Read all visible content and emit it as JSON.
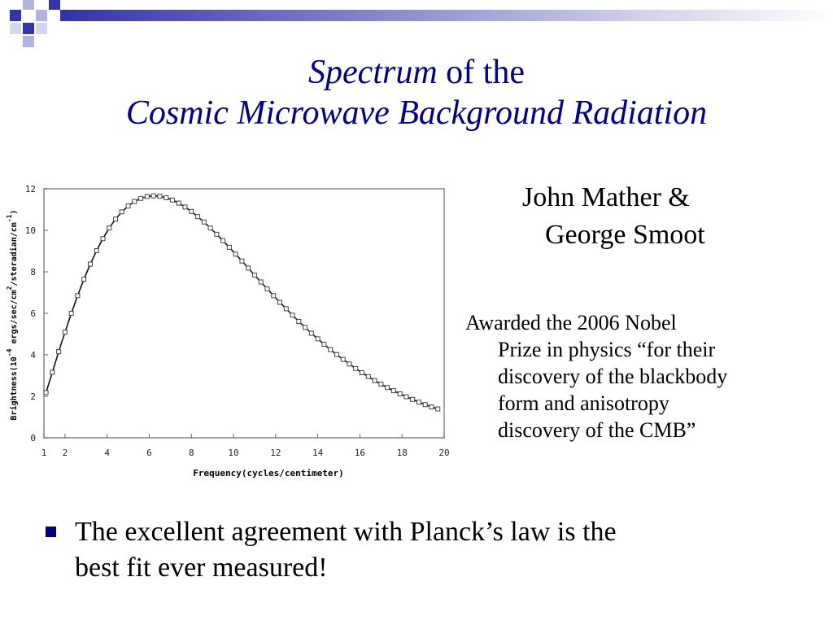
{
  "theme": {
    "navy": "#3333aa",
    "title_color": "#000099",
    "bullet_color": "#000080"
  },
  "title": {
    "line1_italic": "Spectrum",
    "line1_rest": " of the",
    "line2": "Cosmic Microwave Background Radiation"
  },
  "authors": {
    "line1": "John Mather &",
    "line2": "George Smoot"
  },
  "award": {
    "line1": "Awarded the 2006 Nobel",
    "line2": "Prize in physics  “for their",
    "line3": "discovery of the blackbody",
    "line4": "form and anisotropy",
    "line5": "discovery of the CMB”"
  },
  "bullet": {
    "line1": "The excellent agreement with Planck’s law is the",
    "line2": "best fit ever measured!"
  },
  "chart_data": {
    "type": "scatter",
    "xlabel": "Frequency(cycles/centimeter)",
    "ylabel_parts": [
      "Brightness(10",
      "-4",
      " ergs/sec/cm",
      "2",
      "/steradian/cm",
      "-1",
      ")"
    ],
    "xlim": [
      1,
      20
    ],
    "ylim": [
      0,
      12
    ],
    "xticks": [
      {
        "v": 1,
        "label": "1"
      },
      {
        "v": 2,
        "label": "2"
      },
      {
        "v": 4,
        "label": "4"
      },
      {
        "v": 6,
        "label": "6"
      },
      {
        "v": 8,
        "label": "8"
      },
      {
        "v": 10,
        "label": "10"
      },
      {
        "v": 12,
        "label": "12"
      },
      {
        "v": 14,
        "label": "14"
      },
      {
        "v": 16,
        "label": "16"
      },
      {
        "v": 18,
        "label": "18"
      },
      {
        "v": 20,
        "label": "20"
      }
    ],
    "yticks": [
      {
        "v": 0,
        "label": "0"
      },
      {
        "v": 2,
        "label": "2"
      },
      {
        "v": 4,
        "label": "4"
      },
      {
        "v": 6,
        "label": "6"
      },
      {
        "v": 8,
        "label": "8"
      },
      {
        "v": 10,
        "label": "10"
      },
      {
        "v": 12,
        "label": "12"
      }
    ],
    "grid": false,
    "series": [
      {
        "marker": "square",
        "x": [
          1.1,
          1.4,
          1.7,
          2.0,
          2.3,
          2.6,
          2.9,
          3.2,
          3.5,
          3.8,
          4.1,
          4.4,
          4.7,
          5.0,
          5.3,
          5.6,
          5.9,
          6.2,
          6.5,
          6.8,
          7.1,
          7.4,
          7.7,
          8.0,
          8.3,
          8.6,
          8.9,
          9.2,
          9.5,
          9.8,
          10.1,
          10.4,
          10.7,
          11.0,
          11.3,
          11.6,
          11.9,
          12.2,
          12.5,
          12.8,
          13.1,
          13.4,
          13.7,
          14.0,
          14.3,
          14.6,
          14.9,
          15.2,
          15.5,
          15.8,
          16.1,
          16.4,
          16.7,
          17.0,
          17.3,
          17.6,
          17.9,
          18.2,
          18.5,
          18.8,
          19.1,
          19.4,
          19.7
        ],
        "y": [
          2.18,
          3.16,
          4.15,
          5.09,
          6.0,
          6.85,
          7.64,
          8.37,
          9.02,
          9.6,
          10.11,
          10.54,
          10.89,
          11.17,
          11.39,
          11.54,
          11.63,
          11.66,
          11.64,
          11.57,
          11.46,
          11.31,
          11.12,
          10.91,
          10.66,
          10.4,
          10.11,
          9.81,
          9.5,
          9.18,
          8.85,
          8.52,
          8.18,
          7.84,
          7.51,
          7.18,
          6.85,
          6.53,
          6.22,
          5.91,
          5.61,
          5.32,
          5.04,
          4.77,
          4.51,
          4.25,
          4.01,
          3.78,
          3.56,
          3.34,
          3.14,
          2.95,
          2.76,
          2.59,
          2.42,
          2.27,
          2.12,
          1.98,
          1.85,
          1.72,
          1.6,
          1.49,
          1.39
        ]
      }
    ]
  }
}
